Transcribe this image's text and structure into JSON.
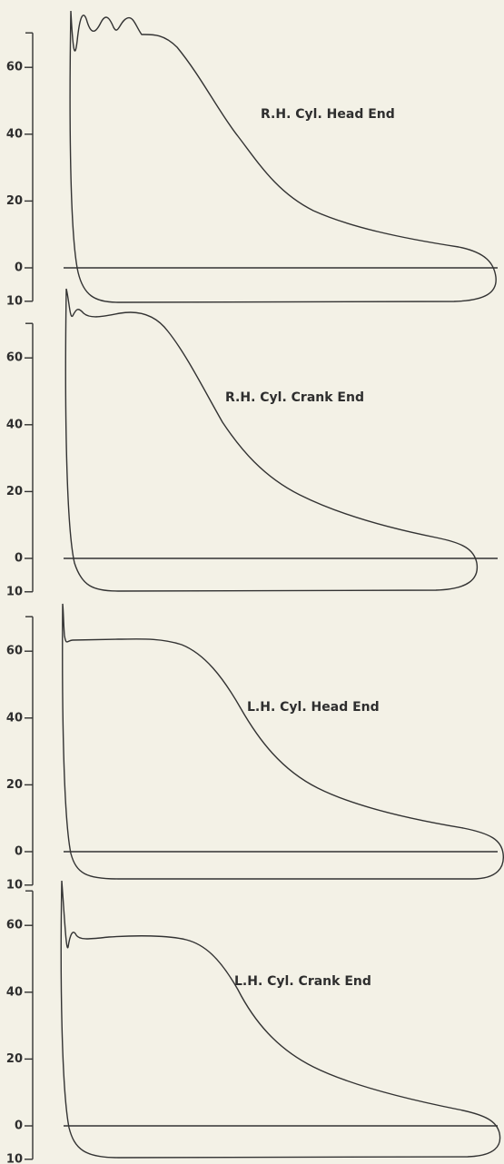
{
  "panels": [
    {
      "label": "R.H. Cyl. Head End",
      "yticks": [
        60,
        40,
        20,
        0,
        {
          "value": -10,
          "label": "10"
        }
      ]
    },
    {
      "label": "R.H. Cyl. Crank End",
      "yticks": [
        60,
        40,
        20,
        0,
        {
          "value": -10,
          "label": "10"
        }
      ]
    },
    {
      "label": "L.H. Cyl. Head End",
      "yticks": [
        60,
        40,
        20,
        0,
        {
          "value": -10,
          "label": "10"
        }
      ]
    },
    {
      "label": "L.H. Cyl. Crank End",
      "yticks": [
        60,
        40,
        20,
        0,
        {
          "value": -10,
          "label": "10"
        }
      ]
    }
  ]
}
